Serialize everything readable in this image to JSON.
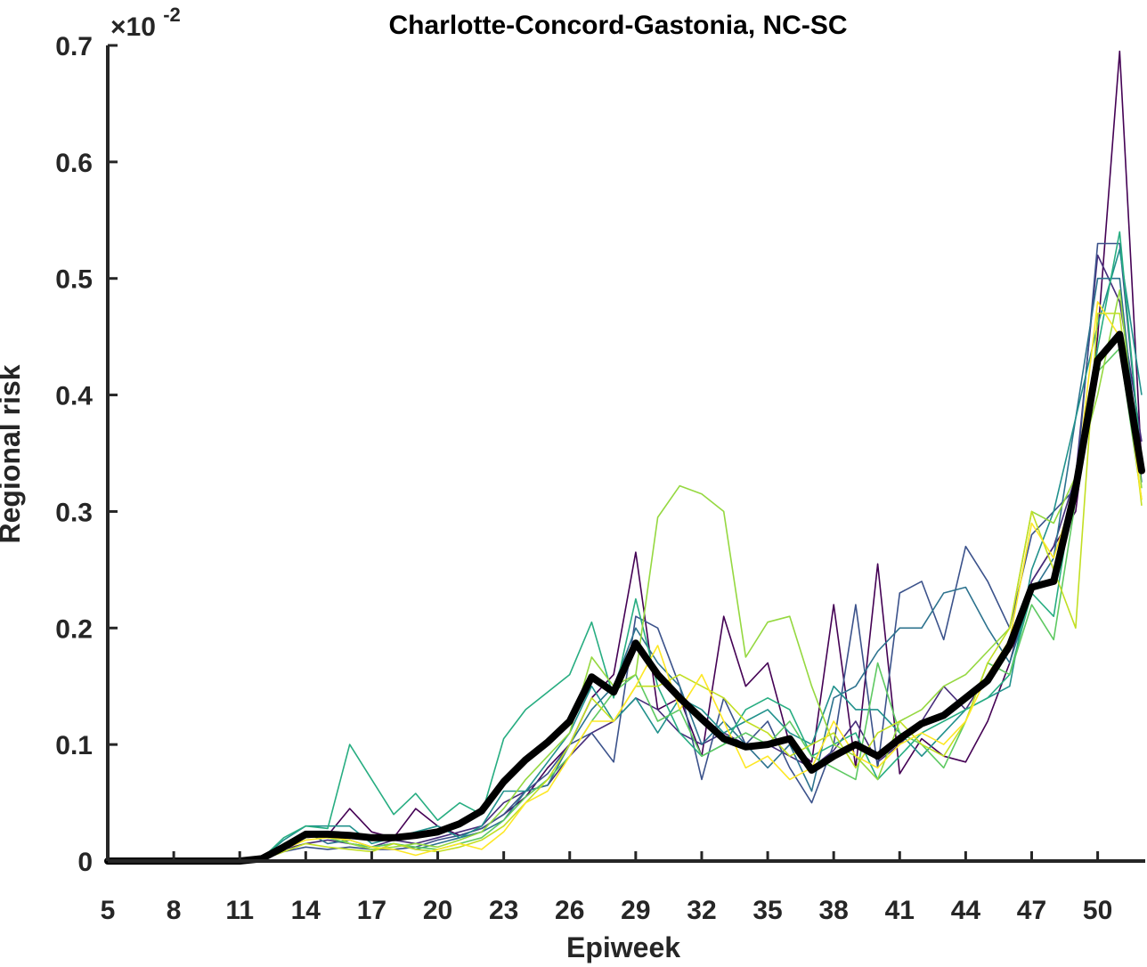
{
  "chart_data": {
    "type": "line",
    "title": "Charlotte-Concord-Gastonia, NC-SC",
    "xlabel": "Epiweek",
    "ylabel": "Regional risk",
    "y_multiplier": {
      "prefix": "×10",
      "exponent": "-2"
    },
    "xlim": [
      5,
      52
    ],
    "ylim": [
      0,
      0.7
    ],
    "x_ticks": [
      5,
      8,
      11,
      14,
      17,
      20,
      23,
      26,
      29,
      32,
      35,
      38,
      41,
      44,
      47,
      50
    ],
    "x_tick_labels": [
      "5",
      "8",
      "11",
      "14",
      "17",
      "20",
      "23",
      "26",
      "29",
      "32",
      "35",
      "38",
      "41",
      "44",
      "47",
      "50"
    ],
    "y_ticks": [
      0,
      0.1,
      0.2,
      0.3,
      0.4,
      0.5,
      0.6,
      0.7
    ],
    "y_tick_labels": [
      "0",
      "0.1",
      "0.2",
      "0.3",
      "0.4",
      "0.5",
      "0.6",
      "0.7"
    ],
    "grid": false,
    "x": [
      5,
      6,
      7,
      8,
      9,
      10,
      11,
      12,
      13,
      14,
      15,
      16,
      17,
      18,
      19,
      20,
      21,
      22,
      23,
      24,
      25,
      26,
      27,
      28,
      29,
      30,
      31,
      32,
      33,
      34,
      35,
      36,
      37,
      38,
      39,
      40,
      41,
      42,
      43,
      44,
      45,
      46,
      47,
      48,
      49,
      50,
      51,
      52
    ],
    "mean_series": {
      "color": "#000000",
      "values": [
        0,
        0,
        0,
        0,
        0,
        0,
        0,
        0.002,
        0.012,
        0.023,
        0.023,
        0.022,
        0.02,
        0.02,
        0.022,
        0.025,
        0.032,
        0.043,
        0.068,
        0.087,
        0.102,
        0.12,
        0.158,
        0.145,
        0.187,
        0.16,
        0.14,
        0.122,
        0.105,
        0.098,
        0.1,
        0.105,
        0.078,
        0.09,
        0.1,
        0.09,
        0.105,
        0.118,
        0.125,
        0.14,
        0.155,
        0.185,
        0.235,
        0.24,
        0.32,
        0.43,
        0.452,
        0.335
      ]
    },
    "series": [
      {
        "color": "#440154",
        "values": [
          0,
          0,
          0,
          0,
          0,
          0,
          0,
          0.002,
          0.012,
          0.02,
          0.022,
          0.045,
          0.025,
          0.02,
          0.045,
          0.03,
          0.022,
          0.028,
          0.04,
          0.055,
          0.08,
          0.1,
          0.14,
          0.16,
          0.265,
          0.13,
          0.14,
          0.09,
          0.21,
          0.15,
          0.17,
          0.1,
          0.085,
          0.22,
          0.08,
          0.255,
          0.075,
          0.105,
          0.09,
          0.085,
          0.12,
          0.17,
          0.24,
          0.27,
          0.3,
          0.45,
          0.695,
          0.34
        ]
      },
      {
        "color": "#472d7b",
        "values": [
          0,
          0,
          0,
          0,
          0,
          0,
          0,
          0.001,
          0.01,
          0.015,
          0.018,
          0.015,
          0.012,
          0.018,
          0.015,
          0.02,
          0.025,
          0.03,
          0.05,
          0.06,
          0.065,
          0.09,
          0.11,
          0.12,
          0.14,
          0.13,
          0.11,
          0.1,
          0.11,
          0.1,
          0.1,
          0.09,
          0.08,
          0.095,
          0.12,
          0.085,
          0.1,
          0.12,
          0.15,
          0.13,
          0.16,
          0.18,
          0.24,
          0.27,
          0.33,
          0.52,
          0.48,
          0.36
        ]
      },
      {
        "color": "#3b528b",
        "values": [
          0,
          0,
          0,
          0,
          0,
          0,
          0,
          0.001,
          0.008,
          0.012,
          0.01,
          0.012,
          0.01,
          0.01,
          0.012,
          0.018,
          0.022,
          0.028,
          0.04,
          0.06,
          0.075,
          0.1,
          0.11,
          0.085,
          0.21,
          0.2,
          0.15,
          0.07,
          0.14,
          0.1,
          0.12,
          0.08,
          0.05,
          0.1,
          0.22,
          0.08,
          0.23,
          0.24,
          0.19,
          0.27,
          0.24,
          0.2,
          0.28,
          0.3,
          0.32,
          0.53,
          0.53,
          0.34
        ]
      },
      {
        "color": "#2c728e",
        "values": [
          0,
          0,
          0,
          0,
          0,
          0,
          0,
          0.001,
          0.015,
          0.025,
          0.015,
          0.018,
          0.012,
          0.015,
          0.01,
          0.015,
          0.02,
          0.025,
          0.035,
          0.06,
          0.065,
          0.1,
          0.13,
          0.15,
          0.2,
          0.17,
          0.15,
          0.1,
          0.12,
          0.1,
          0.08,
          0.1,
          0.06,
          0.14,
          0.15,
          0.18,
          0.2,
          0.2,
          0.23,
          0.235,
          0.2,
          0.17,
          0.23,
          0.26,
          0.38,
          0.5,
          0.5,
          0.325
        ]
      },
      {
        "color": "#21918c",
        "values": [
          0,
          0,
          0,
          0,
          0,
          0,
          0,
          0.002,
          0.018,
          0.03,
          0.03,
          0.03,
          0.015,
          0.02,
          0.025,
          0.03,
          0.02,
          0.03,
          0.06,
          0.06,
          0.085,
          0.11,
          0.15,
          0.12,
          0.14,
          0.11,
          0.14,
          0.13,
          0.11,
          0.12,
          0.13,
          0.11,
          0.1,
          0.15,
          0.13,
          0.13,
          0.11,
          0.09,
          0.11,
          0.13,
          0.14,
          0.15,
          0.25,
          0.3,
          0.38,
          0.46,
          0.525,
          0.4
        ]
      },
      {
        "color": "#27ad81",
        "values": [
          0,
          0,
          0,
          0,
          0,
          0,
          0,
          0.002,
          0.02,
          0.03,
          0.028,
          0.1,
          0.07,
          0.04,
          0.058,
          0.035,
          0.05,
          0.04,
          0.105,
          0.13,
          0.145,
          0.16,
          0.205,
          0.14,
          0.225,
          0.15,
          0.11,
          0.09,
          0.1,
          0.13,
          0.14,
          0.13,
          0.09,
          0.1,
          0.11,
          0.07,
          0.09,
          0.11,
          0.12,
          0.13,
          0.14,
          0.16,
          0.23,
          0.21,
          0.33,
          0.44,
          0.54,
          0.34
        ]
      },
      {
        "color": "#5ec962",
        "values": [
          0,
          0,
          0,
          0,
          0,
          0,
          0,
          0.001,
          0.015,
          0.025,
          0.02,
          0.015,
          0.012,
          0.015,
          0.012,
          0.01,
          0.015,
          0.02,
          0.035,
          0.055,
          0.07,
          0.09,
          0.12,
          0.145,
          0.16,
          0.12,
          0.13,
          0.09,
          0.1,
          0.11,
          0.1,
          0.12,
          0.09,
          0.08,
          0.07,
          0.17,
          0.11,
          0.1,
          0.08,
          0.12,
          0.17,
          0.16,
          0.22,
          0.19,
          0.31,
          0.42,
          0.44,
          0.31
        ]
      },
      {
        "color": "#95d840",
        "values": [
          0,
          0,
          0,
          0,
          0,
          0,
          0,
          0.001,
          0.012,
          0.02,
          0.025,
          0.015,
          0.01,
          0.012,
          0.015,
          0.012,
          0.018,
          0.025,
          0.045,
          0.07,
          0.09,
          0.11,
          0.175,
          0.15,
          0.16,
          0.295,
          0.322,
          0.315,
          0.3,
          0.175,
          0.205,
          0.21,
          0.15,
          0.1,
          0.09,
          0.07,
          0.12,
          0.13,
          0.15,
          0.16,
          0.18,
          0.2,
          0.3,
          0.29,
          0.33,
          0.4,
          0.49,
          0.32
        ]
      },
      {
        "color": "#c2df23",
        "values": [
          0,
          0,
          0,
          0,
          0,
          0,
          0,
          0.001,
          0.008,
          0.015,
          0.012,
          0.01,
          0.008,
          0.015,
          0.01,
          0.008,
          0.012,
          0.018,
          0.03,
          0.05,
          0.07,
          0.1,
          0.14,
          0.12,
          0.15,
          0.15,
          0.16,
          0.15,
          0.14,
          0.12,
          0.11,
          0.09,
          0.1,
          0.11,
          0.08,
          0.11,
          0.12,
          0.1,
          0.09,
          0.12,
          0.17,
          0.2,
          0.3,
          0.25,
          0.2,
          0.47,
          0.47,
          0.305
        ]
      },
      {
        "color": "#fde725",
        "values": [
          0,
          0,
          0,
          0,
          0,
          0,
          0,
          0.001,
          0.01,
          0.018,
          0.02,
          0.018,
          0.012,
          0.01,
          0.005,
          0.01,
          0.015,
          0.01,
          0.025,
          0.05,
          0.06,
          0.09,
          0.12,
          0.12,
          0.15,
          0.185,
          0.13,
          0.16,
          0.12,
          0.08,
          0.09,
          0.07,
          0.08,
          0.12,
          0.09,
          0.08,
          0.1,
          0.11,
          0.1,
          0.12,
          0.16,
          0.19,
          0.29,
          0.26,
          0.32,
          0.48,
          0.45,
          0.31
        ]
      }
    ]
  }
}
